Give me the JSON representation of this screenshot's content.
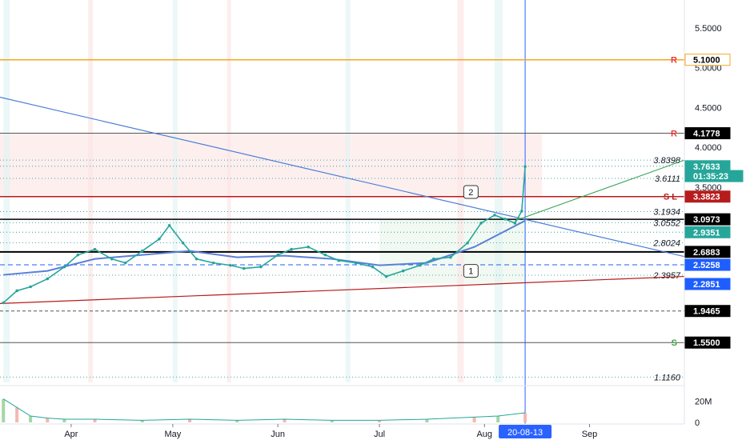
{
  "chart_data": {
    "type": "line",
    "title": "",
    "price_axis": {
      "ylim": [
        1.05,
        5.85
      ],
      "ticks": [
        "5.5000",
        "5.0000",
        "4.5000",
        "4.0000",
        "3.5000"
      ]
    },
    "time_axis": {
      "x_range": [
        "2020-03-11",
        "2020-09-29"
      ],
      "ticks": [
        {
          "date": "2020-04-01",
          "label": "Apr"
        },
        {
          "date": "2020-05-01",
          "label": "May"
        },
        {
          "date": "2020-06-01",
          "label": "Jun"
        },
        {
          "date": "2020-07-01",
          "label": "Jul"
        },
        {
          "date": "2020-08-01",
          "label": "Aug"
        },
        {
          "date": "2020-09-01",
          "label": "Sep"
        }
      ],
      "cursor_date": "2020-08-13",
      "cursor_label": "20-08-13"
    },
    "volume_axis": {
      "ticks": [
        "20M",
        "0"
      ]
    },
    "price_tags": [
      {
        "value": 5.1,
        "label": "5.1000",
        "bg": "#ffffff",
        "fg": "#000000",
        "border": "#f5a623"
      },
      {
        "value": 4.1778,
        "label": "4.1778",
        "bg": "#000000",
        "fg": "#ffffff"
      },
      {
        "value": 3.7633,
        "label": "3.7633",
        "bg": "#26a69a",
        "fg": "#ffffff"
      },
      {
        "value": 3.64,
        "label": "01:35:23",
        "bg": "#26a69a",
        "fg": "#ffffff"
      },
      {
        "value": 3.3823,
        "label": "3.3823",
        "bg": "#b71c1c",
        "fg": "#ffffff"
      },
      {
        "value": 3.0973,
        "label": "3.0973",
        "bg": "#000000",
        "fg": "#ffffff"
      },
      {
        "value": 2.9351,
        "label": "2.9351",
        "bg": "#26a69a",
        "fg": "#ffffff"
      },
      {
        "value": 2.6883,
        "label": "2.6883",
        "bg": "#000000",
        "fg": "#ffffff"
      },
      {
        "value": 2.5258,
        "label": "2.5258",
        "bg": "#1e5eff",
        "fg": "#ffffff"
      },
      {
        "value": 2.2851,
        "label": "2.2851",
        "bg": "#1e5eff",
        "fg": "#ffffff"
      },
      {
        "value": 1.9465,
        "label": "1.9465",
        "bg": "#000000",
        "fg": "#ffffff"
      },
      {
        "value": 1.55,
        "label": "1.5500",
        "bg": "#000000",
        "fg": "#ffffff"
      }
    ],
    "level_annotations": [
      {
        "value": 3.8398,
        "label": "3.8398"
      },
      {
        "value": 3.6111,
        "label": "3.6111"
      },
      {
        "value": 3.1934,
        "label": "3.1934"
      },
      {
        "value": 3.0552,
        "label": "3.0552"
      },
      {
        "value": 2.8024,
        "label": "2.8024"
      },
      {
        "value": 2.3957,
        "label": "2.3957"
      },
      {
        "value": 1.116,
        "label": "1.1160"
      }
    ],
    "level_markers": [
      {
        "value": 5.1,
        "label": "R",
        "color": "#e53935"
      },
      {
        "value": 4.1778,
        "label": "R",
        "color": "#e53935"
      },
      {
        "value": 3.3823,
        "label": "S L",
        "color": "#b71c1c"
      },
      {
        "value": 1.55,
        "label": "S",
        "color": "#43a047"
      }
    ],
    "callouts": [
      {
        "date": "2020-07-28",
        "value": 3.43,
        "label": "2"
      },
      {
        "date": "2020-07-28",
        "value": 2.44,
        "label": "1"
      }
    ],
    "price_series": {
      "name": "",
      "color": "#26a69a",
      "x": [
        "2020-03-12",
        "2020-03-16",
        "2020-03-20",
        "2020-03-25",
        "2020-03-30",
        "2020-04-03",
        "2020-04-08",
        "2020-04-13",
        "2020-04-17",
        "2020-04-22",
        "2020-04-27",
        "2020-04-30",
        "2020-05-04",
        "2020-05-08",
        "2020-05-13",
        "2020-05-18",
        "2020-05-22",
        "2020-05-27",
        "2020-06-01",
        "2020-06-05",
        "2020-06-10",
        "2020-06-15",
        "2020-06-19",
        "2020-06-24",
        "2020-06-29",
        "2020-07-03",
        "2020-07-08",
        "2020-07-13",
        "2020-07-17",
        "2020-07-22",
        "2020-07-27",
        "2020-07-31",
        "2020-08-04",
        "2020-08-07",
        "2020-08-10",
        "2020-08-12",
        "2020-08-13"
      ],
      "values": [
        2.05,
        2.2,
        2.25,
        2.35,
        2.5,
        2.65,
        2.72,
        2.6,
        2.55,
        2.7,
        2.85,
        3.02,
        2.8,
        2.6,
        2.55,
        2.52,
        2.48,
        2.5,
        2.65,
        2.72,
        2.75,
        2.65,
        2.58,
        2.55,
        2.5,
        2.38,
        2.45,
        2.52,
        2.6,
        2.62,
        2.8,
        3.05,
        3.15,
        3.1,
        3.05,
        3.2,
        3.76
      ]
    },
    "moving_average": {
      "x": [
        "2020-03-12",
        "2020-03-25",
        "2020-04-08",
        "2020-04-22",
        "2020-05-06",
        "2020-05-20",
        "2020-06-03",
        "2020-06-17",
        "2020-07-01",
        "2020-07-15",
        "2020-07-29",
        "2020-08-13"
      ],
      "values": [
        2.4,
        2.45,
        2.6,
        2.65,
        2.7,
        2.62,
        2.64,
        2.6,
        2.52,
        2.55,
        2.75,
        3.08
      ]
    },
    "volume_series": {
      "x": [
        "2020-03-12",
        "2020-03-16",
        "2020-03-20",
        "2020-03-25",
        "2020-03-30",
        "2020-04-08",
        "2020-04-22",
        "2020-05-06",
        "2020-05-20",
        "2020-06-03",
        "2020-06-17",
        "2020-07-01",
        "2020-07-15",
        "2020-07-29",
        "2020-08-05",
        "2020-08-13"
      ],
      "values": [
        22,
        14,
        6,
        4,
        3,
        3,
        2,
        3,
        2,
        3,
        2,
        2,
        3,
        5,
        6,
        9
      ]
    }
  }
}
